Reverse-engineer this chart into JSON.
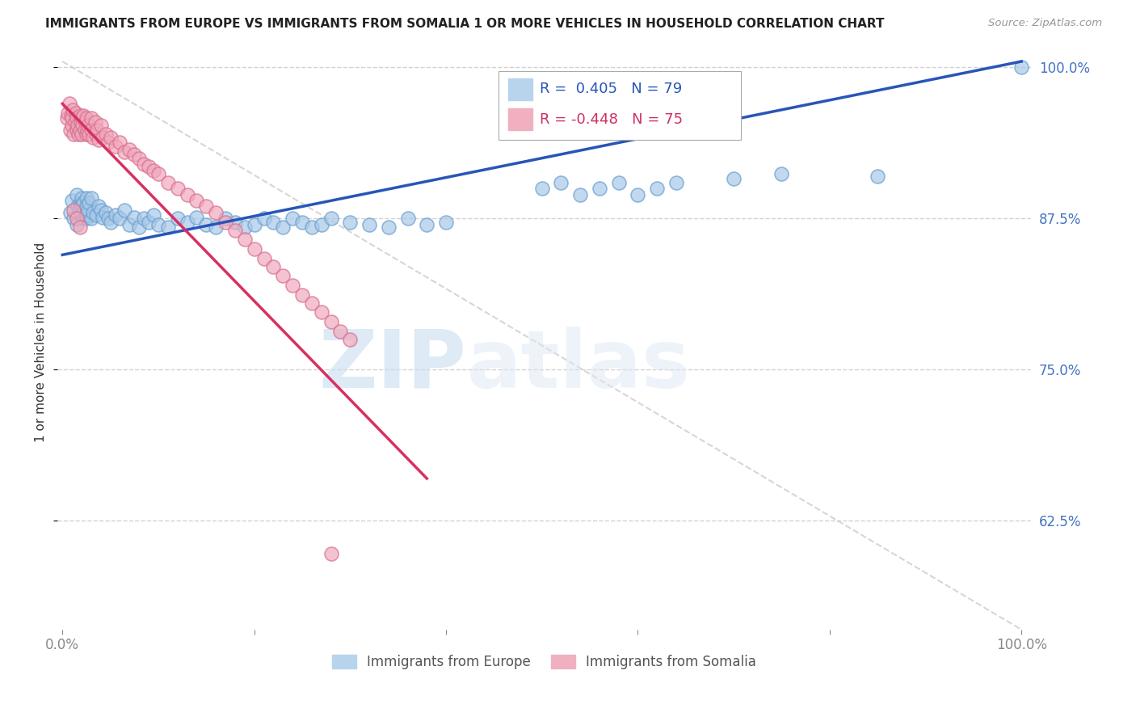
{
  "title": "IMMIGRANTS FROM EUROPE VS IMMIGRANTS FROM SOMALIA 1 OR MORE VEHICLES IN HOUSEHOLD CORRELATION CHART",
  "source": "Source: ZipAtlas.com",
  "ylabel": "1 or more Vehicles in Household",
  "xlim": [
    0.0,
    1.0
  ],
  "ylim": [
    0.535,
    1.01
  ],
  "blue_R": "0.405",
  "blue_N": "79",
  "pink_R": "-0.448",
  "pink_N": "75",
  "legend_label_blue": "Immigrants from Europe",
  "legend_label_pink": "Immigrants from Somalia",
  "watermark_zip": "ZIP",
  "watermark_atlas": "atlas",
  "blue_color": "#a8c8e8",
  "blue_edge": "#6aa0d0",
  "pink_color": "#f0a8bc",
  "pink_edge": "#d87090",
  "blue_line_color": "#2855b8",
  "pink_line_color": "#d83060",
  "diag_line_color": "#cccccc",
  "ytick_color": "#4472c4",
  "blue_line": [
    0.0,
    1.0,
    0.845,
    1.005
  ],
  "pink_line": [
    0.0,
    0.38,
    0.97,
    0.66
  ],
  "diag_line": [
    0.0,
    1.0,
    1.005,
    0.535
  ],
  "blue_x": [
    0.008,
    0.01,
    0.012,
    0.015,
    0.015,
    0.016,
    0.018,
    0.018,
    0.019,
    0.02,
    0.02,
    0.02,
    0.021,
    0.022,
    0.022,
    0.023,
    0.024,
    0.025,
    0.025,
    0.025,
    0.026,
    0.027,
    0.028,
    0.03,
    0.03,
    0.032,
    0.035,
    0.038,
    0.04,
    0.042,
    0.045,
    0.048,
    0.05,
    0.055,
    0.06,
    0.065,
    0.07,
    0.075,
    0.08,
    0.085,
    0.09,
    0.095,
    0.1,
    0.11,
    0.12,
    0.13,
    0.14,
    0.15,
    0.16,
    0.17,
    0.18,
    0.19,
    0.2,
    0.21,
    0.22,
    0.23,
    0.24,
    0.25,
    0.26,
    0.27,
    0.28,
    0.3,
    0.32,
    0.34,
    0.36,
    0.38,
    0.4,
    0.5,
    0.52,
    0.54,
    0.56,
    0.58,
    0.6,
    0.62,
    0.64,
    0.7,
    0.75,
    0.85,
    1.0
  ],
  "blue_y": [
    0.88,
    0.89,
    0.875,
    0.895,
    0.87,
    0.885,
    0.885,
    0.882,
    0.888,
    0.878,
    0.892,
    0.886,
    0.88,
    0.875,
    0.888,
    0.882,
    0.878,
    0.892,
    0.875,
    0.885,
    0.878,
    0.882,
    0.888,
    0.875,
    0.892,
    0.88,
    0.878,
    0.885,
    0.882,
    0.876,
    0.88,
    0.875,
    0.872,
    0.878,
    0.875,
    0.882,
    0.87,
    0.876,
    0.868,
    0.875,
    0.872,
    0.878,
    0.87,
    0.868,
    0.875,
    0.872,
    0.876,
    0.87,
    0.868,
    0.875,
    0.872,
    0.868,
    0.87,
    0.875,
    0.872,
    0.868,
    0.875,
    0.872,
    0.868,
    0.87,
    0.875,
    0.872,
    0.87,
    0.868,
    0.875,
    0.87,
    0.872,
    0.9,
    0.905,
    0.895,
    0.9,
    0.905,
    0.895,
    0.9,
    0.905,
    0.908,
    0.912,
    0.91,
    1.0
  ],
  "pink_x": [
    0.005,
    0.006,
    0.007,
    0.008,
    0.009,
    0.01,
    0.01,
    0.011,
    0.012,
    0.013,
    0.014,
    0.015,
    0.015,
    0.016,
    0.017,
    0.018,
    0.018,
    0.019,
    0.02,
    0.02,
    0.021,
    0.022,
    0.023,
    0.024,
    0.025,
    0.025,
    0.026,
    0.027,
    0.028,
    0.03,
    0.03,
    0.032,
    0.034,
    0.035,
    0.036,
    0.038,
    0.04,
    0.042,
    0.045,
    0.048,
    0.05,
    0.055,
    0.06,
    0.065,
    0.07,
    0.075,
    0.08,
    0.085,
    0.09,
    0.095,
    0.1,
    0.11,
    0.12,
    0.13,
    0.14,
    0.15,
    0.16,
    0.17,
    0.18,
    0.19,
    0.2,
    0.21,
    0.22,
    0.23,
    0.24,
    0.25,
    0.26,
    0.27,
    0.28,
    0.29,
    0.3,
    0.012,
    0.015,
    0.018,
    0.28
  ],
  "pink_y": [
    0.958,
    0.962,
    0.97,
    0.948,
    0.96,
    0.952,
    0.958,
    0.965,
    0.945,
    0.955,
    0.962,
    0.948,
    0.958,
    0.952,
    0.945,
    0.96,
    0.948,
    0.955,
    0.958,
    0.945,
    0.952,
    0.96,
    0.948,
    0.955,
    0.945,
    0.958,
    0.948,
    0.952,
    0.945,
    0.958,
    0.948,
    0.942,
    0.955,
    0.945,
    0.948,
    0.94,
    0.952,
    0.942,
    0.945,
    0.938,
    0.942,
    0.935,
    0.938,
    0.93,
    0.932,
    0.928,
    0.925,
    0.92,
    0.918,
    0.915,
    0.912,
    0.905,
    0.9,
    0.895,
    0.89,
    0.885,
    0.88,
    0.872,
    0.865,
    0.858,
    0.85,
    0.842,
    0.835,
    0.828,
    0.82,
    0.812,
    0.805,
    0.798,
    0.79,
    0.782,
    0.775,
    0.882,
    0.875,
    0.868,
    0.598
  ]
}
